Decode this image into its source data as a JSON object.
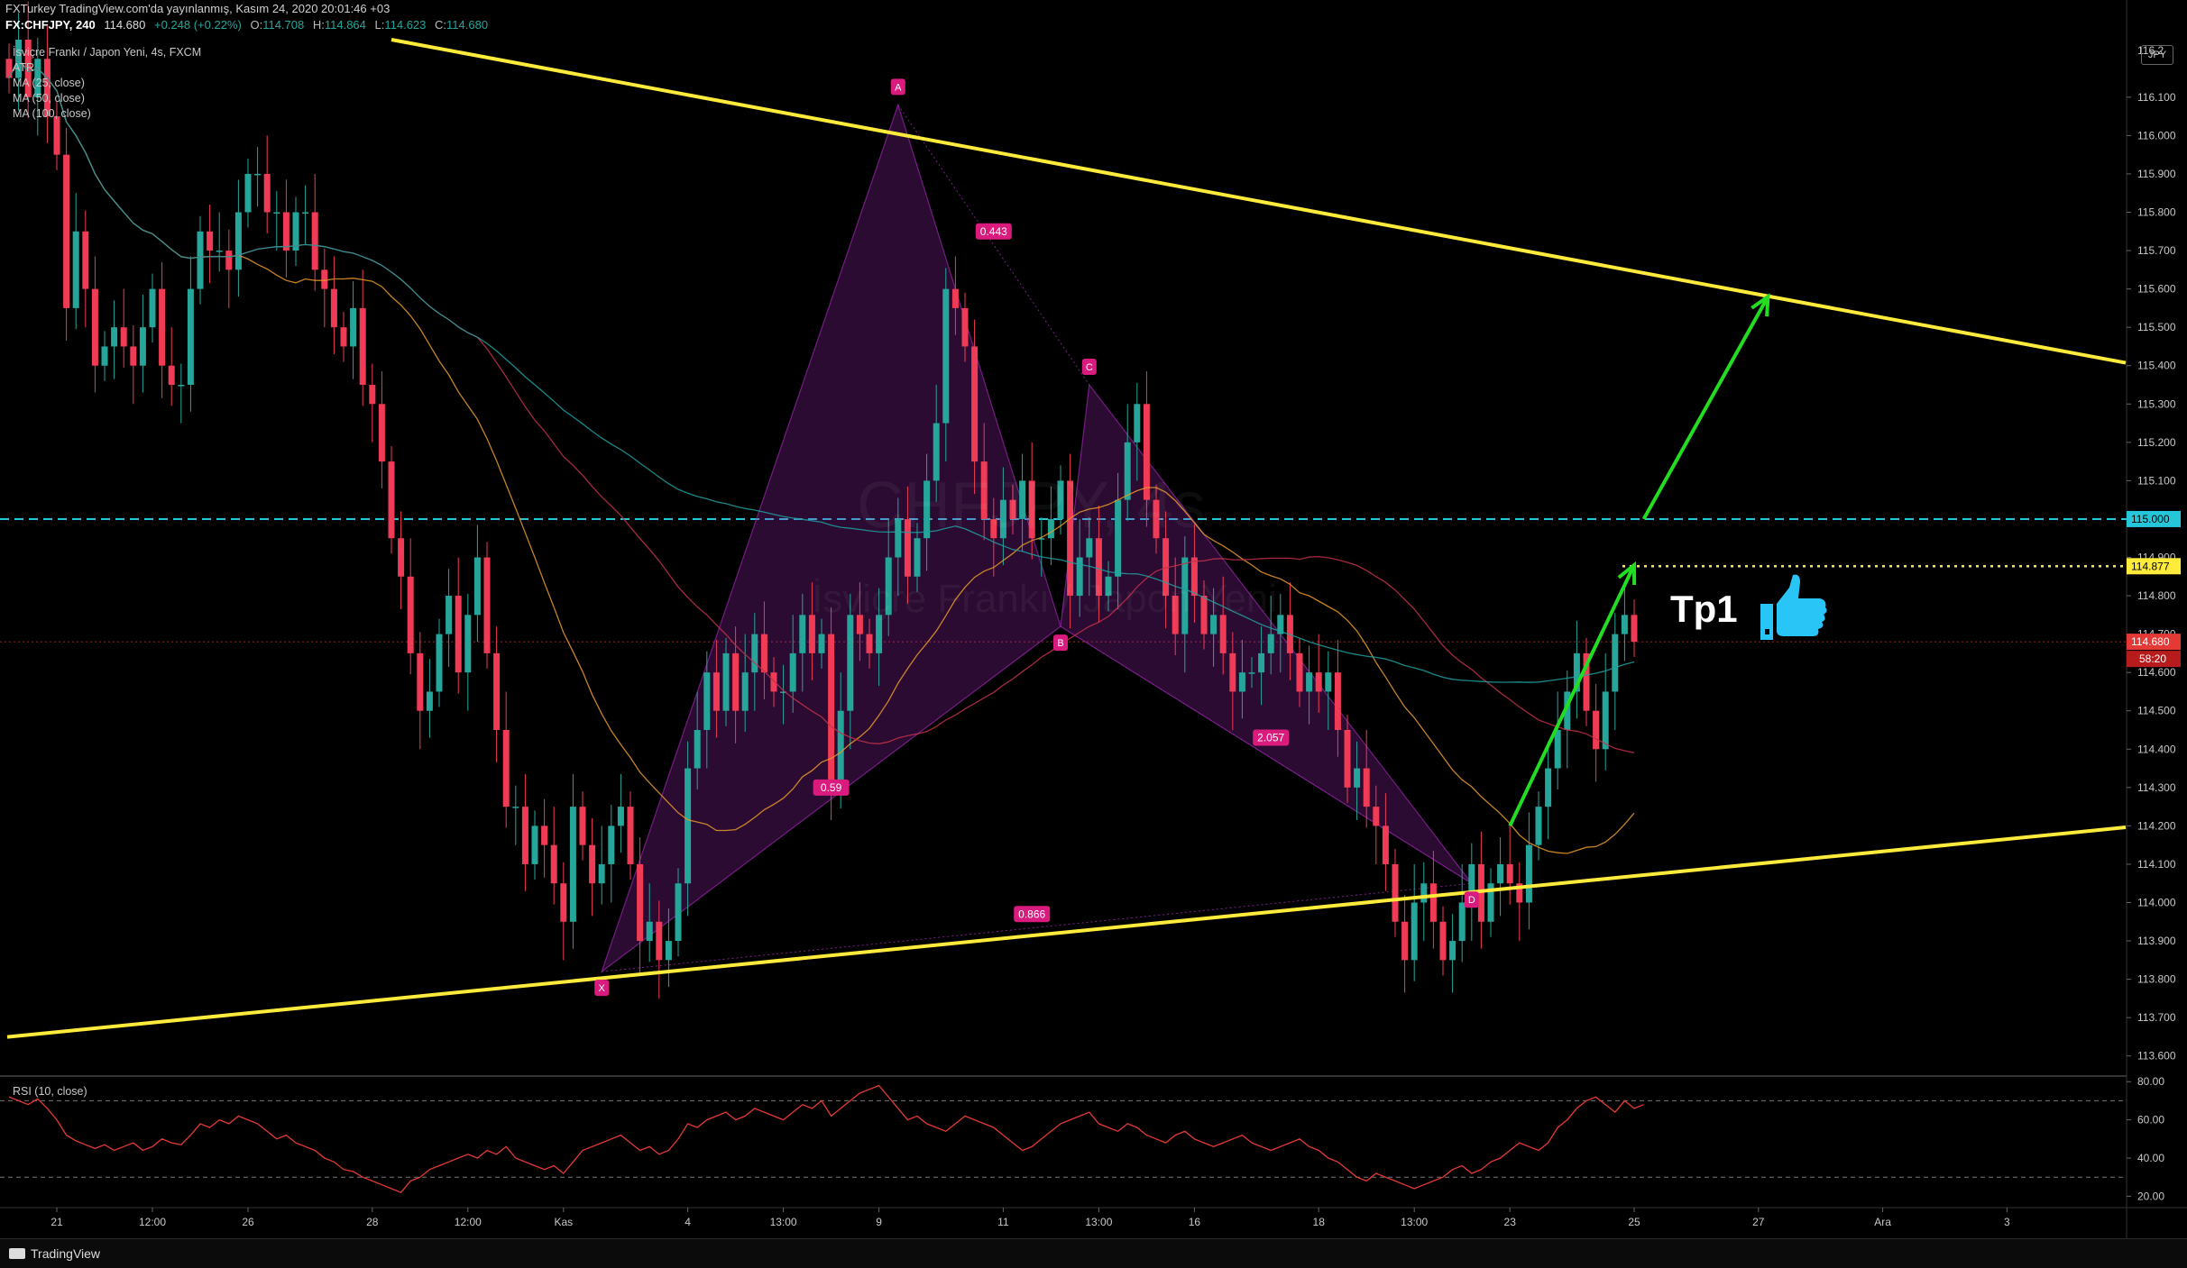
{
  "header": {
    "line1": "FXTurkey TradingView.com'da yayınlanmış, Kasım 24, 2020 20:01:46 +03",
    "symbol": "FX:CHFJPY, 240",
    "last": "114.680",
    "change": "+0.248 (+0.22%)",
    "o_label": "O:",
    "o_val": "114.708",
    "h_label": "H:",
    "h_val": "114.864",
    "l_label": "L:",
    "l_val": "114.623",
    "c_label": "C:",
    "c_val": "114.680"
  },
  "legend": {
    "title": "İsviçre Frankı / Japon Yeni, 4s, FXCM",
    "items": [
      "ATR",
      "MA (25, close)",
      "MA (50, close)",
      "MA (100, close)"
    ]
  },
  "watermark": {
    "symbol": "CHFJPY, 4s",
    "name": "İsviçre Frankı / Japon Yeni"
  },
  "currency": "JPY",
  "annotation_text": "Tp1",
  "rsi_title": "RSI (10, close)",
  "footer": {
    "brand": "TradingView"
  },
  "colors": {
    "up": "#26a69a",
    "down": "#ef3b55",
    "trendline": "#ffeb3b",
    "arrow": "#22dd22",
    "pattern_fill": "#9c27b0",
    "label_bg": "#d81b7d",
    "hline_cyan": "#26c6da",
    "hline_yellow": "#ffeb3b",
    "price_red": "#e53935",
    "ma25": "#e89a2a",
    "ma50": "#c2304a",
    "ma100": "#1fa0a0",
    "rsi": "#e53935",
    "thumb": "#29c5f6"
  },
  "chart_data": {
    "type": "candlestick",
    "price_axis": {
      "min": 113.55,
      "max": 116.25,
      "ticks": [
        "116.100",
        "116.000",
        "115.900",
        "115.800",
        "115.700",
        "115.600",
        "115.500",
        "115.400",
        "115.300",
        "115.200",
        "115.100",
        "114.900",
        "114.800",
        "114.700",
        "114.600",
        "114.500",
        "114.400",
        "114.300",
        "114.200",
        "114.100",
        "114.000",
        "113.900",
        "113.800",
        "113.700",
        "113.600"
      ],
      "tick_values": [
        116.1,
        116.0,
        115.9,
        115.8,
        115.7,
        115.6,
        115.5,
        115.4,
        115.3,
        115.2,
        115.1,
        114.9,
        114.8,
        114.7,
        114.6,
        114.5,
        114.4,
        114.3,
        114.2,
        114.1,
        114.0,
        113.9,
        113.8,
        113.7,
        113.6
      ],
      "top_partial": "116.2"
    },
    "price_labels": [
      {
        "value": 115.0,
        "text": "115.000",
        "style": "cyan"
      },
      {
        "value": 114.877,
        "text": "114.877",
        "style": "yellow"
      },
      {
        "value": 114.68,
        "text": "114.680",
        "sub": "58:20",
        "style": "red"
      }
    ],
    "time_axis": [
      {
        "label": "21",
        "bar": 5
      },
      {
        "label": "12:00",
        "bar": 15
      },
      {
        "label": "26",
        "bar": 25
      },
      {
        "label": "28",
        "bar": 38
      },
      {
        "label": "12:00",
        "bar": 48
      },
      {
        "label": "Kas",
        "bar": 58
      },
      {
        "label": "4",
        "bar": 71
      },
      {
        "label": "13:00",
        "bar": 81
      },
      {
        "label": "9",
        "bar": 91
      },
      {
        "label": "11",
        "bar": 104
      },
      {
        "label": "13:00",
        "bar": 114
      },
      {
        "label": "16",
        "bar": 124
      },
      {
        "label": "18",
        "bar": 137
      },
      {
        "label": "13:00",
        "bar": 147
      },
      {
        "label": "23",
        "bar": 157
      },
      {
        "label": "25",
        "bar": 170
      },
      {
        "label": "27",
        "bar": 183
      },
      {
        "label": "Ara",
        "bar": 196
      },
      {
        "label": "3",
        "bar": 209
      }
    ],
    "close": [
      116.15,
      116.25,
      116.1,
      116.2,
      116.05,
      115.95,
      115.55,
      115.75,
      115.6,
      115.4,
      115.45,
      115.5,
      115.45,
      115.4,
      115.5,
      115.6,
      115.4,
      115.35,
      115.35,
      115.6,
      115.75,
      115.7,
      115.7,
      115.65,
      115.8,
      115.9,
      115.9,
      115.8,
      115.8,
      115.7,
      115.8,
      115.8,
      115.65,
      115.6,
      115.5,
      115.45,
      115.55,
      115.35,
      115.3,
      115.15,
      114.95,
      114.85,
      114.65,
      114.5,
      114.55,
      114.7,
      114.8,
      114.6,
      114.75,
      114.9,
      114.65,
      114.45,
      114.25,
      114.25,
      114.1,
      114.2,
      114.15,
      114.05,
      113.95,
      114.25,
      114.15,
      114.05,
      114.1,
      114.2,
      114.25,
      114.1,
      113.9,
      113.95,
      113.85,
      113.9,
      114.05,
      114.35,
      114.45,
      114.6,
      114.5,
      114.65,
      114.5,
      114.6,
      114.7,
      114.6,
      114.55,
      114.55,
      114.65,
      114.75,
      114.65,
      114.7,
      114.3,
      114.5,
      114.75,
      114.7,
      114.65,
      114.75,
      114.9,
      115.0,
      114.85,
      114.95,
      115.1,
      115.25,
      115.6,
      115.55,
      115.45,
      115.15,
      115.0,
      114.95,
      115.05,
      115.0,
      115.1,
      114.95,
      114.95,
      115.0,
      115.1,
      114.8,
      114.9,
      114.95,
      114.8,
      114.85,
      115.05,
      115.2,
      115.3,
      115.05,
      114.95,
      114.8,
      114.7,
      114.9,
      114.8,
      114.7,
      114.75,
      114.65,
      114.55,
      114.6,
      114.6,
      114.65,
      114.7,
      114.75,
      114.65,
      114.55,
      114.6,
      114.55,
      114.6,
      114.45,
      114.3,
      114.35,
      114.25,
      114.2,
      114.1,
      113.95,
      113.85,
      114.0,
      114.05,
      113.95,
      113.85,
      113.9,
      114.0,
      114.1,
      113.95,
      114.05,
      114.1,
      114.05,
      114.0,
      114.15,
      114.25,
      114.35,
      114.45,
      114.55,
      114.65,
      114.5,
      114.4,
      114.55,
      114.7,
      114.75,
      114.68
    ],
    "ma25_start_bar": 0,
    "ma50_start_bar": 0,
    "ma100_start_bar": 0,
    "trendlines": [
      {
        "name": "upper",
        "from": {
          "bar": 40,
          "price": 116.25
        },
        "to": {
          "bar": 223,
          "price": 115.4
        }
      },
      {
        "name": "lower",
        "from": {
          "bar": 0,
          "price": 113.65
        },
        "to": {
          "bar": 223,
          "price": 114.2
        }
      }
    ],
    "pattern": {
      "points": [
        {
          "label": "X",
          "bar": 62,
          "price": 113.82
        },
        {
          "label": "A",
          "bar": 93,
          "price": 116.08
        },
        {
          "label": "B",
          "bar": 110,
          "price": 114.72
        },
        {
          "label": "C",
          "bar": 113,
          "price": 115.35
        },
        {
          "label": "D",
          "bar": 153,
          "price": 114.05
        }
      ],
      "ratios": [
        {
          "text": "0.443",
          "bar": 103,
          "price": 115.75
        },
        {
          "text": "0.59",
          "bar": 86,
          "price": 114.3
        },
        {
          "text": "2.057",
          "bar": 132,
          "price": 114.43
        },
        {
          "text": "0.866",
          "bar": 107,
          "price": 113.97
        }
      ]
    },
    "hlines": [
      {
        "price": 115.0,
        "style": "dashed-cyan"
      },
      {
        "price": 114.877,
        "from_bar": 165,
        "style": "dotted-yellow"
      },
      {
        "price": 114.68,
        "style": "dotted-red"
      }
    ],
    "arrows": [
      {
        "from": {
          "bar": 157,
          "price": 114.2
        },
        "to": {
          "bar": 170,
          "price": 114.88
        }
      },
      {
        "from": {
          "bar": 171,
          "price": 115.0
        },
        "to": {
          "bar": 184,
          "price": 115.58
        }
      }
    ],
    "rsi": {
      "axis_ticks": [
        "80.00",
        "60.00",
        "40.00",
        "20.00"
      ],
      "tick_values": [
        80,
        60,
        40,
        20
      ],
      "levels": [
        70,
        30
      ],
      "min": 15,
      "max": 82,
      "values": [
        72,
        70,
        68,
        71,
        66,
        60,
        52,
        49,
        47,
        45,
        47,
        44,
        46,
        48,
        44,
        46,
        50,
        48,
        47,
        52,
        58,
        56,
        60,
        58,
        62,
        60,
        58,
        54,
        50,
        52,
        48,
        46,
        44,
        40,
        38,
        34,
        33,
        30,
        28,
        26,
        24,
        22,
        28,
        30,
        34,
        36,
        38,
        40,
        42,
        40,
        44,
        42,
        46,
        40,
        38,
        36,
        34,
        36,
        32,
        38,
        44,
        46,
        48,
        50,
        52,
        48,
        44,
        46,
        42,
        44,
        50,
        58,
        56,
        60,
        62,
        64,
        60,
        62,
        66,
        64,
        62,
        60,
        64,
        68,
        66,
        70,
        62,
        66,
        70,
        74,
        76,
        78,
        72,
        66,
        60,
        62,
        58,
        56,
        54,
        58,
        62,
        60,
        58,
        56,
        52,
        48,
        44,
        46,
        50,
        54,
        58,
        60,
        62,
        64,
        58,
        56,
        54,
        58,
        56,
        52,
        50,
        48,
        52,
        54,
        50,
        48,
        46,
        48,
        50,
        52,
        48,
        46,
        44,
        46,
        48,
        50,
        46,
        44,
        40,
        38,
        34,
        30,
        28,
        32,
        30,
        28,
        26,
        24,
        26,
        28,
        30,
        34,
        36,
        32,
        34,
        38,
        40,
        44,
        48,
        46,
        44,
        48,
        56,
        60,
        66,
        70,
        72,
        68,
        64,
        70,
        66,
        68
      ]
    }
  }
}
